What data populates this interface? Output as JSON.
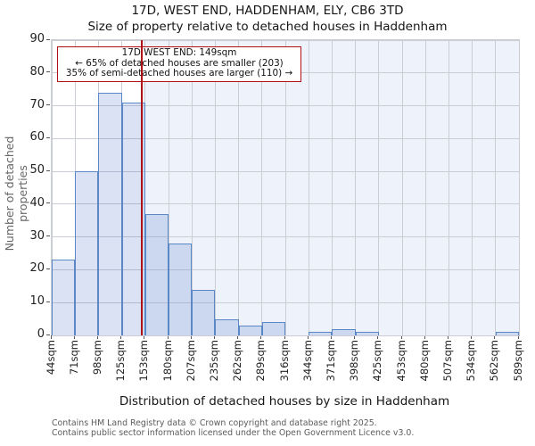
{
  "title": "17D, WEST END, HADDENHAM, ELY, CB6 3TD",
  "subtitle": "Size of property relative to detached houses in Haddenham",
  "annotation": {
    "line1": "17D WEST END: 149sqm",
    "line2": "← 65% of detached houses are smaller (203)",
    "line3": "35% of semi-detached houses are larger (110) →"
  },
  "chart_data": {
    "type": "bar",
    "title": "17D, WEST END, HADDENHAM, ELY, CB6 3TD",
    "subtitle": "Size of property relative to detached houses in Haddenham",
    "xlabel": "Distribution of detached houses by size in Haddenham",
    "ylabel": "Number of detached properties",
    "bin_edges_sqm": [
      44,
      71,
      98,
      125,
      153,
      180,
      207,
      235,
      262,
      289,
      316,
      344,
      371,
      398,
      425,
      453,
      480,
      507,
      534,
      562,
      589
    ],
    "x_tick_labels": [
      "44sqm",
      "71sqm",
      "98sqm",
      "125sqm",
      "153sqm",
      "180sqm",
      "207sqm",
      "235sqm",
      "262sqm",
      "289sqm",
      "316sqm",
      "344sqm",
      "371sqm",
      "398sqm",
      "425sqm",
      "453sqm",
      "480sqm",
      "507sqm",
      "534sqm",
      "562sqm",
      "589sqm"
    ],
    "values": [
      23,
      50,
      74,
      71,
      37,
      28,
      14,
      5,
      3,
      4,
      0,
      1,
      2,
      1,
      0,
      0,
      0,
      0,
      0,
      1
    ],
    "y_ticks": [
      0,
      10,
      20,
      30,
      40,
      50,
      60,
      70,
      80,
      90
    ],
    "ylim": [
      0,
      90
    ],
    "grid": true,
    "legend": "none",
    "marker_value_sqm": 149,
    "shade_region": "right-of-marker"
  },
  "colors": {
    "bar_fill": "#dce6f5",
    "bar_border": "#5b87c7",
    "marker_red": "#b01116",
    "shade": "#eef3fb",
    "grid": "#cbcdd4",
    "axis_line": "#aeb0b6",
    "footer_text": "#5c5c5e"
  },
  "footer": {
    "line1": "Contains HM Land Registry data © Crown copyright and database right 2025.",
    "line2": "Contains public sector information licensed under the Open Government Licence v3.0."
  }
}
